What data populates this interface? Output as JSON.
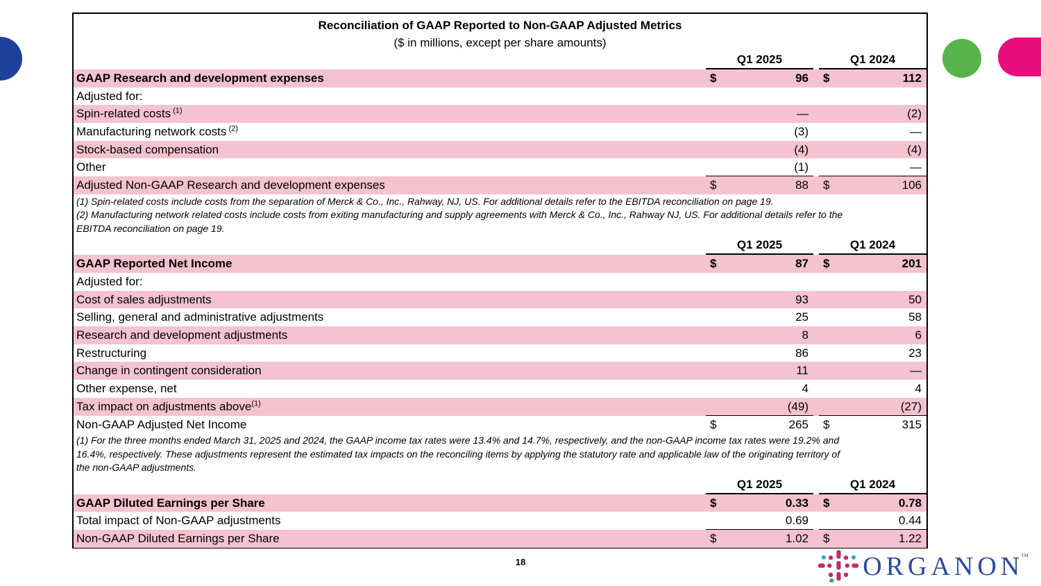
{
  "page": {
    "number": "18"
  },
  "logo": {
    "text": "ORGANON",
    "tm": "™",
    "text_color": "#2B4A9B"
  },
  "decorations": {
    "blue_circle_color": "#1F419B",
    "green_circle_color": "#56B44B",
    "pink_pill_color": "#EB0D7E"
  },
  "table": {
    "title": "Reconciliation of GAAP Reported to Non-GAAP Adjusted Metrics",
    "subtitle": "($ in millions, except per share amounts)",
    "col_2025": "Q1 2025",
    "col_2024": "Q1 2024",
    "highlight_color": "#F4C2D0",
    "sections": [
      {
        "header": true,
        "rows": [
          {
            "label": "GAAP Research and development expenses",
            "d1": "$",
            "v1": "96",
            "d2": "$",
            "v2": "112",
            "pink": true,
            "bold": true
          },
          {
            "label": "Adjusted for:",
            "v1": "",
            "v2": ""
          },
          {
            "label": "Spin-related costs",
            "sup": " (1)",
            "v1": "—",
            "v2": "(2)",
            "pink": true
          },
          {
            "label": "Manufacturing network costs",
            "sup": " (2)",
            "v1": "(3)",
            "v2": "—"
          },
          {
            "label": "Stock-based compensation",
            "v1": "(4)",
            "v2": "(4)",
            "pink": true
          },
          {
            "label": "Other",
            "v1": "(1)",
            "v2": "—",
            "underline": true
          },
          {
            "label": "Adjusted Non-GAAP Research and development expenses",
            "d1": "$",
            "v1": "88",
            "d2": "$",
            "v2": "106",
            "pink": true
          }
        ],
        "footnotes": [
          "(1) Spin-related costs include costs from the separation of Merck & Co., Inc., Rahway, NJ, US. For additional details refer to the EBITDA reconciliation on page 19.",
          "(2) Manufacturing network related costs include costs from exiting manufacturing and supply agreements with Merck & Co., Inc., Rahway NJ, US. For additional details refer to the",
          "EBITDA reconciliation on page 19."
        ]
      },
      {
        "header": true,
        "rows": [
          {
            "label": "GAAP Reported Net Income",
            "d1": "$",
            "v1": "87",
            "d2": "$",
            "v2": "201",
            "pink": true,
            "bold": true
          },
          {
            "label": "Adjusted for:",
            "v1": "",
            "v2": ""
          },
          {
            "label": "Cost of sales adjustments",
            "v1": "93",
            "v2": "50",
            "pink": true
          },
          {
            "label": "Selling, general and administrative adjustments",
            "v1": "25",
            "v2": "58"
          },
          {
            "label": "Research and development adjustments",
            "v1": "8",
            "v2": "6",
            "pink": true
          },
          {
            "label": "Restructuring",
            "v1": "86",
            "v2": "23"
          },
          {
            "label": "Change in contingent consideration",
            "v1": "11",
            "v2": "—",
            "pink": true
          },
          {
            "label": "Other expense, net",
            "v1": "4",
            "v2": "4"
          },
          {
            "label": "Tax impact on adjustments above",
            "sup": "(1)",
            "v1": "(49)",
            "v2": "(27)",
            "pink": true,
            "underline": true
          },
          {
            "label": "Non-GAAP Adjusted Net Income",
            "d1": "$",
            "v1": "265",
            "d2": "$",
            "v2": "315"
          }
        ],
        "footnotes": [
          "(1) For the three months ended March 31, 2025 and 2024, the GAAP income tax rates were 13.4% and 14.7%, respectively, and the non-GAAP income tax rates were 19.2% and",
          "16.4%, respectively. These adjustments represent the estimated tax impacts on the reconciling items by applying the statutory rate and applicable law of the originating territory of",
          "the non-GAAP adjustments."
        ]
      },
      {
        "header": true,
        "rows": [
          {
            "label": "GAAP Diluted Earnings per Share",
            "d1": "$",
            "v1": "0.33",
            "d2": "$",
            "v2": "0.78",
            "pink": true,
            "bold": true
          },
          {
            "label": "Total impact of Non-GAAP adjustments",
            "v1": "0.69",
            "v2": "0.44",
            "underline": true
          },
          {
            "label": "Non-GAAP Diluted Earnings per Share",
            "d1": "$",
            "v1": "1.02",
            "d2": "$",
            "v2": "1.22",
            "pink": true
          }
        ],
        "footnotes": []
      }
    ]
  }
}
